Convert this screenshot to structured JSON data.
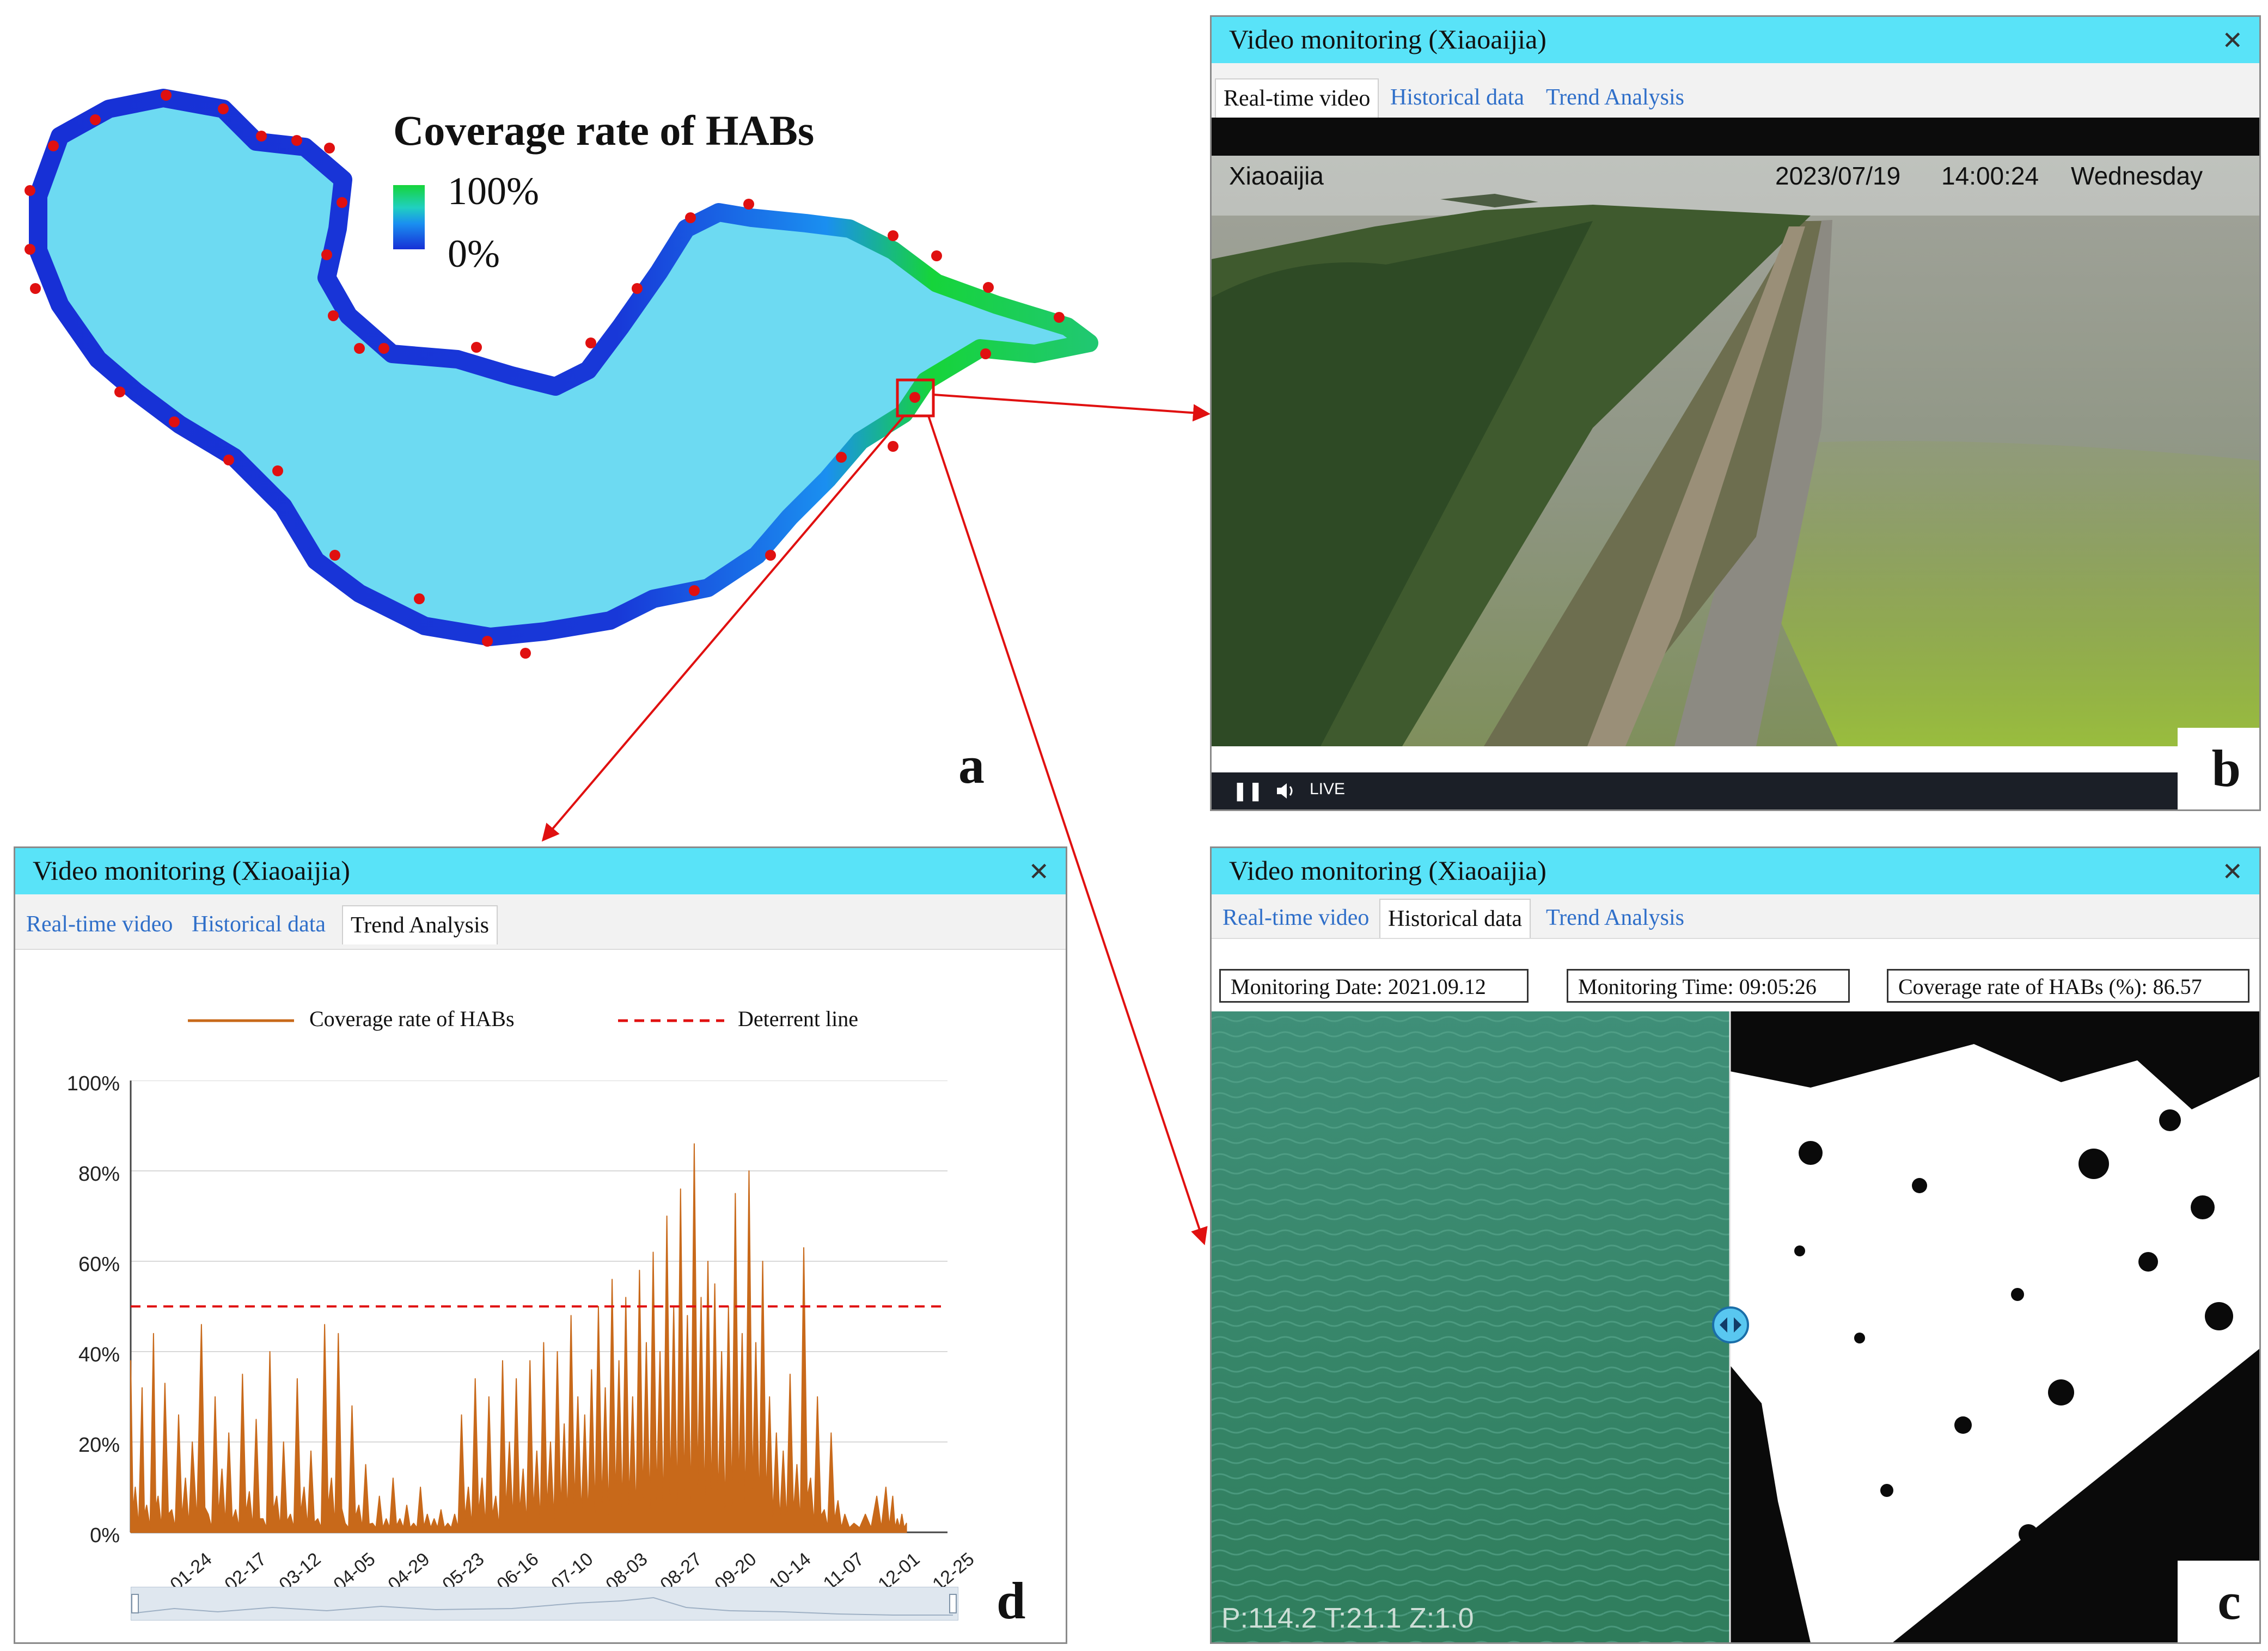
{
  "map": {
    "legend_title": "Coverage rate of HABs",
    "legend_max": "100%",
    "legend_min": "0%",
    "panel_letter": "a",
    "colors": {
      "lake": "#6ddaf2",
      "low": "#1730d6",
      "mid": "#1a8ff0",
      "high": "#16d43a",
      "sites": "#e01010",
      "arrow": "#e01010"
    }
  },
  "panel_b": {
    "title": "Video monitoring (Xiaoaijia)",
    "close_icon": "close-icon",
    "tabs": [
      {
        "label": "Real-time video",
        "active": true
      },
      {
        "label": "Historical data",
        "active": false
      },
      {
        "label": "Trend Analysis",
        "active": false
      }
    ],
    "osd_location": "Xiaoaijia",
    "osd_date": "2023/07/19",
    "osd_time": "14:00:24",
    "osd_day": "Wednesday",
    "controls": {
      "pause_icon": "pause-icon",
      "volume_icon": "volume-icon",
      "live_label": "LIVE"
    },
    "panel_letter": "b"
  },
  "panel_c": {
    "title": "Video monitoring (Xiaoaijia)",
    "close_icon": "close-icon",
    "tabs": [
      {
        "label": "Real-time video",
        "active": false
      },
      {
        "label": "Historical data",
        "active": true
      },
      {
        "label": "Trend Analysis",
        "active": false
      }
    ],
    "monitoring_date": "Monitoring Date: 2021.09.12",
    "monitoring_time": "Monitoring Time: 09:05:26",
    "coverage": "Coverage rate of HABs (%): 86.57",
    "ptz_overlay": "P:114.2 T:21.1 Z:1.0",
    "slider_icon": "compare-slider-icon",
    "panel_letter": "c"
  },
  "panel_d": {
    "title": "Video monitoring (Xiaoaijia)",
    "close_icon": "close-icon",
    "tabs": [
      {
        "label": "Real-time video",
        "active": false
      },
      {
        "label": "Historical data",
        "active": false
      },
      {
        "label": "Trend Analysis",
        "active": true
      }
    ],
    "panel_letter": "d"
  },
  "chart_data": {
    "type": "line",
    "title": "",
    "xlabel": "",
    "ylabel": "",
    "ylim": [
      0,
      100
    ],
    "y_ticks": [
      "0%",
      "20%",
      "40%",
      "60%",
      "80%",
      "100%"
    ],
    "x_ticks": [
      "01-24",
      "02-17",
      "03-12",
      "04-05",
      "04-29",
      "05-23",
      "06-16",
      "07-10",
      "08-03",
      "08-27",
      "09-20",
      "10-14",
      "11-07",
      "12-01",
      "12-25"
    ],
    "grid": true,
    "legend_placement": "top",
    "series": [
      {
        "name": "Coverage rate of HABs",
        "color": "#c8691a",
        "style": "solid",
        "x": [
          "01-01",
          "01-03",
          "01-06",
          "01-08",
          "01-11",
          "01-13",
          "01-16",
          "01-19",
          "01-22",
          "01-25",
          "01-28",
          "02-01",
          "02-04",
          "02-07",
          "02-10",
          "02-13",
          "02-16",
          "02-19",
          "02-22",
          "02-25",
          "02-28",
          "03-03",
          "03-06",
          "03-09",
          "03-12",
          "03-15",
          "03-18",
          "03-21",
          "03-24",
          "03-27",
          "03-30",
          "04-02",
          "04-05",
          "04-08",
          "04-11",
          "04-14",
          "04-17",
          "04-20",
          "04-23",
          "04-26",
          "04-29",
          "05-02",
          "05-05",
          "05-08",
          "05-11",
          "05-14",
          "05-17",
          "05-20",
          "05-23",
          "05-26",
          "05-29",
          "06-01",
          "06-04",
          "06-07",
          "06-10",
          "06-13",
          "06-16",
          "06-19",
          "06-22",
          "06-25",
          "06-28",
          "07-01",
          "07-04",
          "07-07",
          "07-10",
          "07-13",
          "07-16",
          "07-19",
          "07-22",
          "07-25",
          "07-28",
          "07-31",
          "08-03",
          "08-06",
          "08-09",
          "08-12",
          "08-15",
          "08-18",
          "08-21",
          "08-24",
          "08-27",
          "08-30",
          "09-02",
          "09-05",
          "09-08",
          "09-11",
          "09-14",
          "09-17",
          "09-20",
          "09-23",
          "09-26",
          "09-29",
          "10-02",
          "10-05",
          "10-08",
          "10-11",
          "10-14",
          "10-17",
          "10-20",
          "10-23",
          "10-26",
          "10-29",
          "11-01",
          "11-04",
          "11-07",
          "11-10",
          "11-14",
          "11-19",
          "11-24",
          "11-28",
          "12-01",
          "12-03",
          "12-05",
          "12-07"
        ],
        "values": [
          38,
          10,
          32,
          6,
          44,
          8,
          33,
          5,
          26,
          12,
          20,
          46,
          4,
          30,
          14,
          22,
          5,
          35,
          9,
          25,
          3,
          40,
          8,
          20,
          4,
          34,
          10,
          18,
          3,
          46,
          12,
          44,
          2,
          28,
          6,
          15,
          2,
          8,
          3,
          12,
          3,
          6,
          2,
          10,
          4,
          3,
          5,
          2,
          4,
          26,
          10,
          34,
          12,
          30,
          8,
          38,
          20,
          34,
          14,
          38,
          18,
          42,
          20,
          40,
          24,
          48,
          30,
          26,
          36,
          50,
          32,
          56,
          38,
          52,
          30,
          58,
          42,
          62,
          40,
          70,
          50,
          76,
          48,
          86,
          52,
          60,
          55,
          40,
          50,
          75,
          44,
          80,
          42,
          60,
          30,
          22,
          18,
          35,
          15,
          63,
          12,
          30,
          5,
          22,
          7,
          4,
          2,
          4,
          8,
          10,
          8,
          3,
          4,
          2
        ],
        "note": "spiky daily series, approximate peaks"
      },
      {
        "name": "Deterrent line",
        "color": "#e01010",
        "style": "dashed",
        "value": 50
      }
    ]
  }
}
